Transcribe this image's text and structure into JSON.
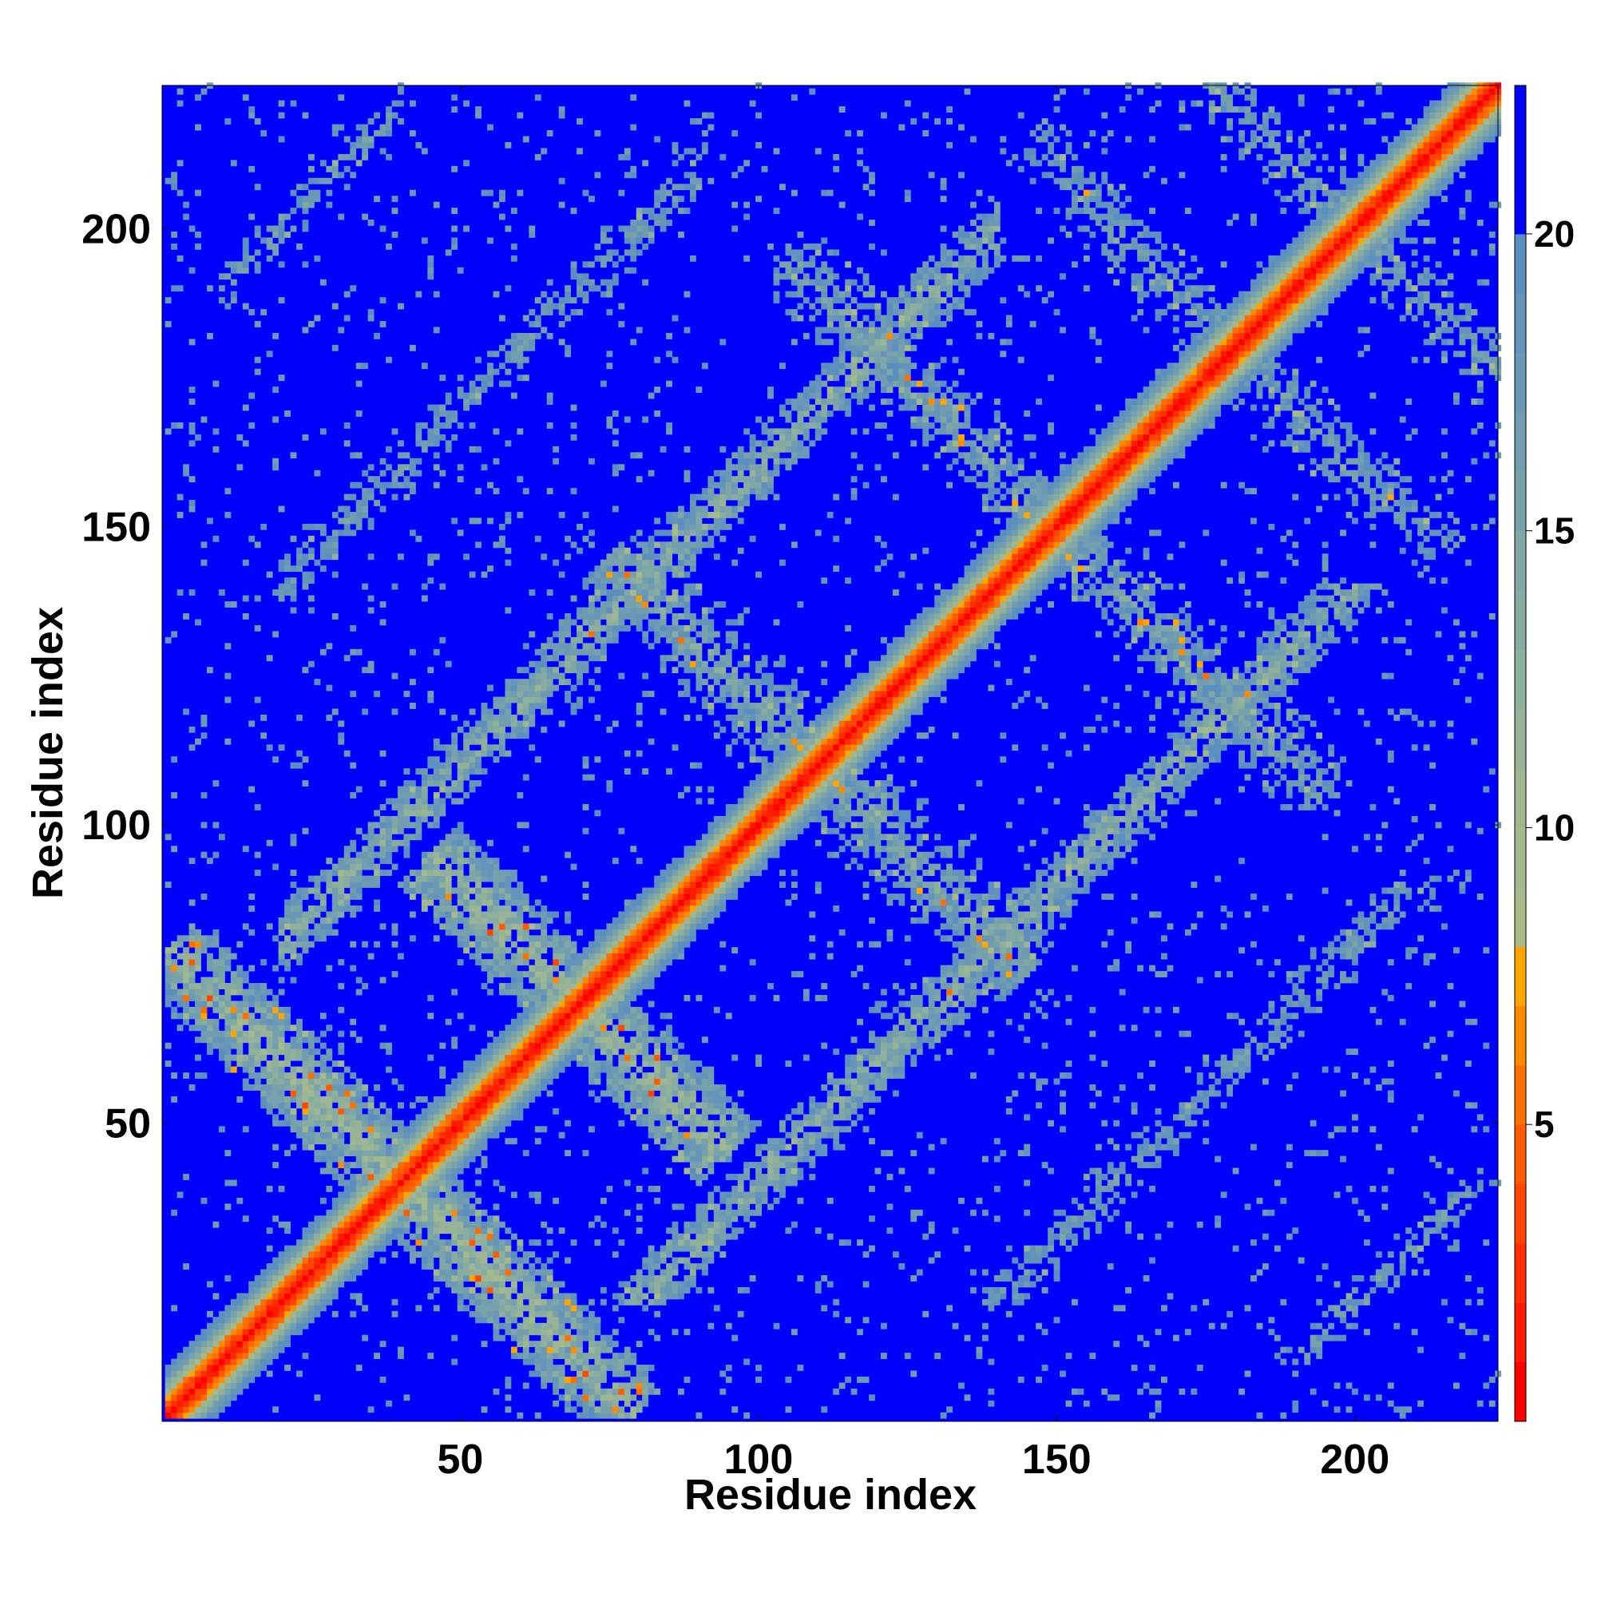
{
  "chart_data": {
    "type": "heatmap",
    "title": "",
    "xlabel": "Residue index",
    "ylabel": "Residue index",
    "n_residues": 224,
    "xlim": [
      1,
      224
    ],
    "ylim": [
      1,
      224
    ],
    "x_ticks": [
      50,
      100,
      150,
      200
    ],
    "y_ticks": [
      50,
      100,
      150,
      200
    ],
    "x_tick_labels": [
      "50",
      "100",
      "150",
      "200"
    ],
    "y_tick_labels": [
      "50",
      "100",
      "150",
      "200"
    ],
    "colorbar": {
      "ticks": [
        5,
        10,
        15,
        20
      ],
      "tick_labels": [
        "5",
        "10",
        "15",
        "20"
      ],
      "range": [
        0,
        22.5
      ],
      "levels": [
        {
          "max": 1,
          "color": "#ff0000"
        },
        {
          "max": 2,
          "color": "#ff1a00"
        },
        {
          "max": 3,
          "color": "#ff2e00"
        },
        {
          "max": 4,
          "color": "#ff4500"
        },
        {
          "max": 5,
          "color": "#ff5a00"
        },
        {
          "max": 6,
          "color": "#ff6f00"
        },
        {
          "max": 7,
          "color": "#ff8a00"
        },
        {
          "max": 8,
          "color": "#ffa500"
        },
        {
          "max": 9,
          "color": "#a8b98a"
        },
        {
          "max": 10,
          "color": "#a3b98e"
        },
        {
          "max": 11,
          "color": "#9fb692"
        },
        {
          "max": 12,
          "color": "#98b397"
        },
        {
          "max": 13,
          "color": "#8fb09b"
        },
        {
          "max": 14,
          "color": "#88aca1"
        },
        {
          "max": 15,
          "color": "#7fa7a6"
        },
        {
          "max": 16,
          "color": "#78a2ab"
        },
        {
          "max": 17,
          "color": "#719db1"
        },
        {
          "max": 18,
          "color": "#6a98b5"
        },
        {
          "max": 19,
          "color": "#6494ba"
        },
        {
          "max": 20,
          "color": "#5b8fbf"
        },
        {
          "max": 999,
          "color": "#0000ff"
        }
      ]
    },
    "diagonal_band_width": 8,
    "contact_bands": [
      {
        "kind": "anti",
        "sum": 80,
        "d_min": 5,
        "d_max": 78,
        "width": 5,
        "fill": 0.85,
        "core": 9
      },
      {
        "kind": "anti",
        "sum": 140,
        "d_min": 5,
        "d_max": 50,
        "width": 5,
        "fill": 0.85,
        "core": 9
      },
      {
        "kind": "anti",
        "sum": 220,
        "d_min": 5,
        "d_max": 70,
        "width": 5,
        "fill": 0.8,
        "core": 12
      },
      {
        "kind": "anti",
        "sum": 300,
        "d_min": 5,
        "d_max": 90,
        "width": 5,
        "fill": 0.75,
        "core": 13
      },
      {
        "kind": "anti",
        "sum": 360,
        "d_min": 5,
        "d_max": 70,
        "width": 5,
        "fill": 0.7,
        "core": 14
      },
      {
        "kind": "anti",
        "sum": 400,
        "d_min": 5,
        "d_max": 50,
        "width": 5,
        "fill": 0.7,
        "core": 14
      },
      {
        "kind": "par",
        "diff": 60,
        "t_min": 20,
        "t_max": 140,
        "width": 6,
        "fill": 0.8,
        "core": 11
      },
      {
        "kind": "par",
        "diff": 120,
        "t_min": 20,
        "t_max": 90,
        "width": 6,
        "fill": 0.65,
        "core": 14
      },
      {
        "kind": "par",
        "diff": 180,
        "t_min": 10,
        "t_max": 40,
        "width": 5,
        "fill": 0.65,
        "core": 14
      }
    ],
    "sparse_noise_density": 0.05
  }
}
